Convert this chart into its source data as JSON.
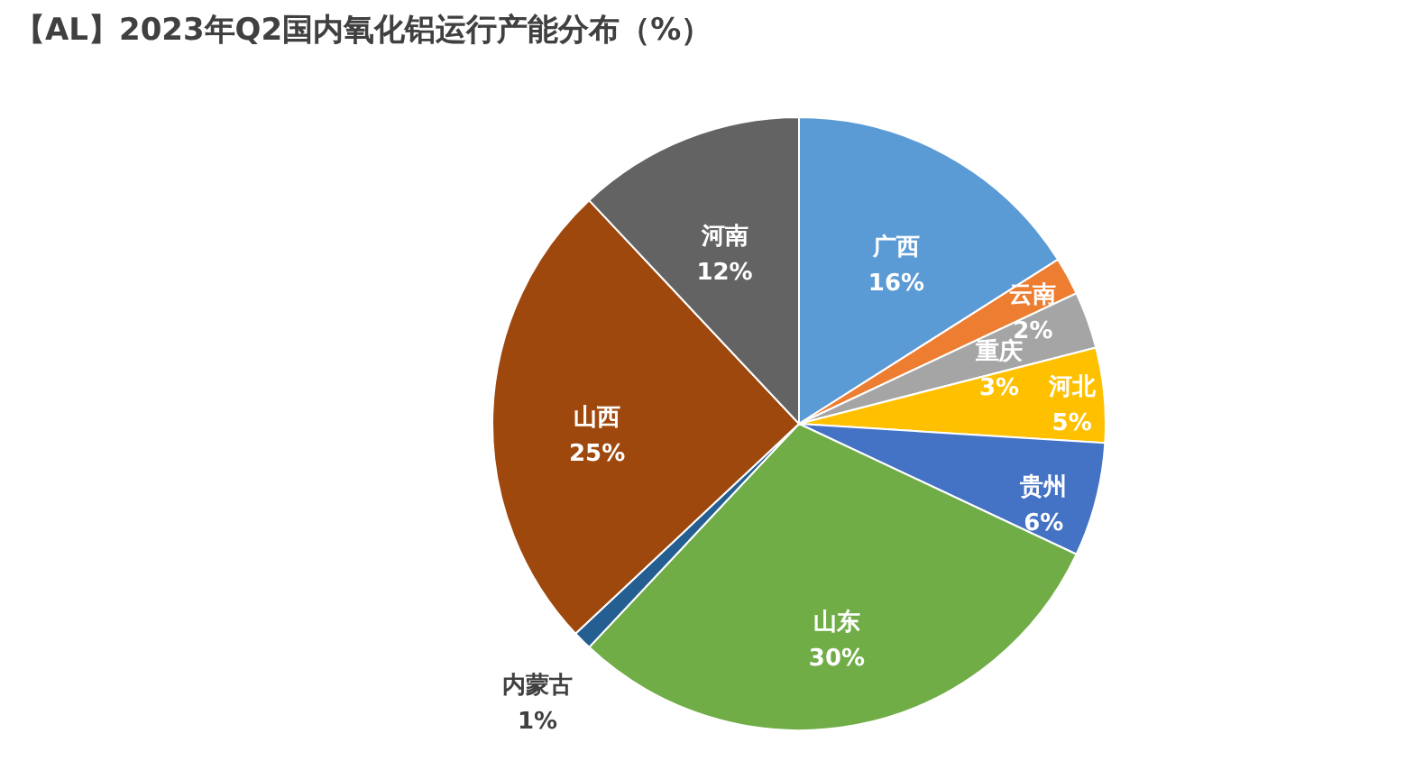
{
  "chart_data": {
    "type": "pie",
    "title": "【AL】2023年Q2国内氧化铝运行产能分布（%）",
    "categories": [
      "广西",
      "云南",
      "重庆",
      "河北",
      "贵州",
      "山东",
      "内蒙古",
      "山西",
      "河南"
    ],
    "values": [
      16,
      2,
      3,
      5,
      6,
      30,
      1,
      25,
      12
    ],
    "value_labels": [
      "16%",
      "2%",
      "3%",
      "5%",
      "6%",
      "30%",
      "1%",
      "25%",
      "12%"
    ],
    "colors": [
      "#5b9bd5",
      "#ed7d31",
      "#a5a5a5",
      "#ffc000",
      "#4472c4",
      "#70ad47",
      "#255e91",
      "#9e480e",
      "#636363"
    ],
    "legend": false
  }
}
